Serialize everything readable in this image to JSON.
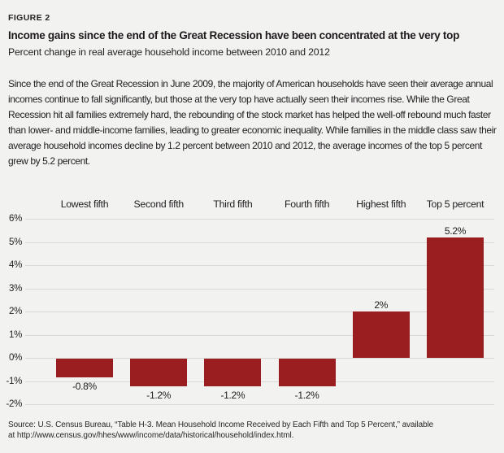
{
  "figure_label": "FIGURE 2",
  "title": "Income gains since the end of the Great Recession have been concentrated at the very top",
  "subtitle": "Percent change in real average household income between 2010 and 2012",
  "body_paragraph": "Since the end of the Great Recession in June 2009, the majority of American households have seen their average annual incomes continue to fall significantly, but those at the very top have actually seen their incomes rise. While the Great Recession hit all families extremely hard, the rebounding of the stock market has helped the well-off rebound much faster than lower- and middle-income families, leading to greater economic inequality. While families in the middle class saw their average household incomes decline by 1.2 percent between 2010 and 2012, the average incomes of the top 5 percent grew by 5.2 percent.",
  "source_text": "Source: U.S. Census Bureau, “Table H-3. Mean Household Income Received by Each Fifth and Top 5 Percent,” available\nat http://www.census.gov/hhes/www/income/data/historical/household/index.html.",
  "chart_data": {
    "type": "bar",
    "title": "Percent change in real average household income between 2010 and 2012",
    "categories": [
      "Lowest fifth",
      "Second fifth",
      "Third fifth",
      "Fourth fifth",
      "Highest fifth",
      "Top 5 percent"
    ],
    "values": [
      -0.8,
      -1.2,
      -1.2,
      -1.2,
      2,
      5.2
    ],
    "value_labels": [
      "-0.8%",
      "-1.2%",
      "-1.2%",
      "-1.2%",
      "2%",
      "5.2%"
    ],
    "y_axis": {
      "tick_labels": [
        "6%",
        "5%",
        "4%",
        "3%",
        "2%",
        "1%",
        "0%",
        "-1%",
        "-2%"
      ],
      "tick_values": [
        6,
        5,
        4,
        3,
        2,
        1,
        0,
        -1,
        -2
      ],
      "range": [
        -2,
        6
      ]
    },
    "grid": true,
    "legend": "none",
    "bar_color": "#9a1d1f"
  },
  "colors": {
    "background": "#f2f2f1",
    "bar": "#9a1d1f",
    "gridline": "#d8d8d6",
    "text": "#262223"
  }
}
